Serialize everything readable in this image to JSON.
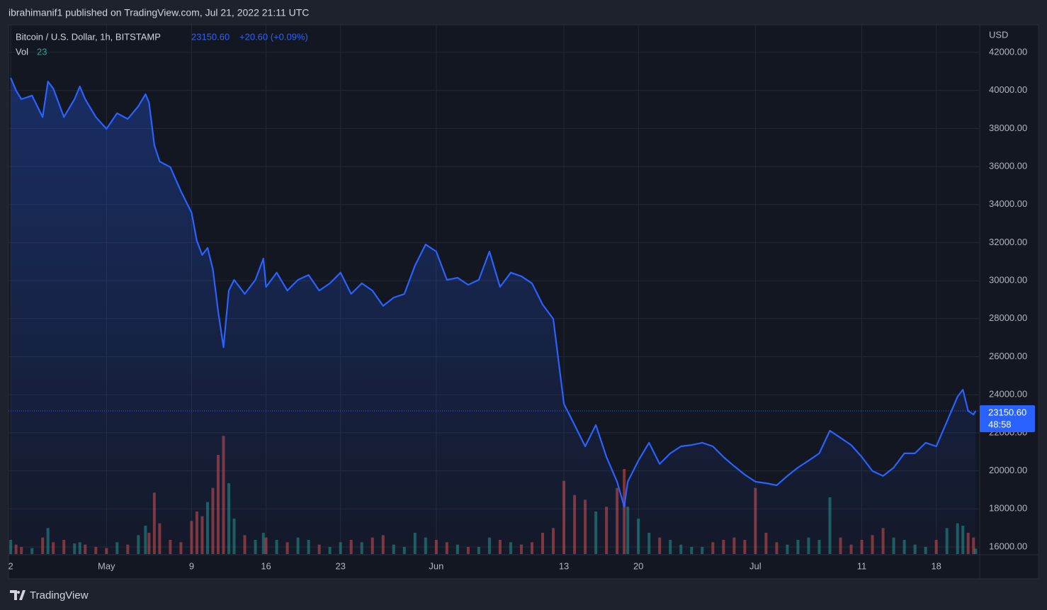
{
  "header": "ibrahimanif1 published on TradingView.com, Jul 21, 2022 21:11 UTC",
  "footer": "TradingView",
  "chart_data": {
    "type": "line",
    "title": "Bitcoin / U.S. Dollar, 1h, BITSTAMP",
    "last_price_label": "23150.60",
    "change_label": "+20.60 (+0.09%)",
    "countdown": "48:58",
    "y_axis_label": "USD",
    "grid": true,
    "x": [
      "2022-04-22T00:00",
      "2022-04-22T12:00",
      "2022-04-23T00:00",
      "2022-04-24T00:00",
      "2022-04-25T00:00",
      "2022-04-25T12:00",
      "2022-04-26T00:00",
      "2022-04-27T00:00",
      "2022-04-28T00:00",
      "2022-04-28T12:00",
      "2022-04-29T00:00",
      "2022-04-30T00:00",
      "2022-05-01T00:00",
      "2022-05-02T00:00",
      "2022-05-03T00:00",
      "2022-05-04T00:00",
      "2022-05-04T16:00",
      "2022-05-05T00:00",
      "2022-05-05T12:00",
      "2022-05-06T00:00",
      "2022-05-07T00:00",
      "2022-05-08T00:00",
      "2022-05-09T00:00",
      "2022-05-09T12:00",
      "2022-05-10T00:00",
      "2022-05-10T12:00",
      "2022-05-11T00:00",
      "2022-05-11T12:00",
      "2022-05-12T00:00",
      "2022-05-12T12:00",
      "2022-05-13T00:00",
      "2022-05-14T00:00",
      "2022-05-15T00:00",
      "2022-05-15T18:00",
      "2022-05-16T00:00",
      "2022-05-17T00:00",
      "2022-05-18T00:00",
      "2022-05-19T00:00",
      "2022-05-20T00:00",
      "2022-05-21T00:00",
      "2022-05-22T00:00",
      "2022-05-23T00:00",
      "2022-05-24T00:00",
      "2022-05-25T00:00",
      "2022-05-26T00:00",
      "2022-05-27T00:00",
      "2022-05-28T00:00",
      "2022-05-29T00:00",
      "2022-05-30T00:00",
      "2022-05-31T00:00",
      "2022-06-01T00:00",
      "2022-06-02T00:00",
      "2022-06-03T00:00",
      "2022-06-04T00:00",
      "2022-06-05T00:00",
      "2022-06-06T00:00",
      "2022-06-07T00:00",
      "2022-06-08T00:00",
      "2022-06-09T00:00",
      "2022-06-10T00:00",
      "2022-06-11T00:00",
      "2022-06-12T00:00",
      "2022-06-13T00:00",
      "2022-06-14T00:00",
      "2022-06-15T00:00",
      "2022-06-16T00:00",
      "2022-06-17T00:00",
      "2022-06-18T00:00",
      "2022-06-18T16:00",
      "2022-06-19T00:00",
      "2022-06-20T00:00",
      "2022-06-21T00:00",
      "2022-06-22T00:00",
      "2022-06-23T00:00",
      "2022-06-24T00:00",
      "2022-06-25T00:00",
      "2022-06-26T00:00",
      "2022-06-27T00:00",
      "2022-06-28T00:00",
      "2022-06-29T00:00",
      "2022-06-30T00:00",
      "2022-07-01T00:00",
      "2022-07-02T00:00",
      "2022-07-03T00:00",
      "2022-07-04T00:00",
      "2022-07-05T00:00",
      "2022-07-06T00:00",
      "2022-07-07T00:00",
      "2022-07-08T00:00",
      "2022-07-09T00:00",
      "2022-07-10T00:00",
      "2022-07-11T00:00",
      "2022-07-12T00:00",
      "2022-07-13T00:00",
      "2022-07-14T00:00",
      "2022-07-15T00:00",
      "2022-07-16T00:00",
      "2022-07-17T00:00",
      "2022-07-18T00:00",
      "2022-07-19T00:00",
      "2022-07-20T00:00",
      "2022-07-20T12:00",
      "2022-07-21T00:00",
      "2022-07-21T12:00",
      "2022-07-21T17:00"
    ],
    "series": [
      {
        "name": "Bitcoin / U.S. Dollar",
        "color": "#2962ff",
        "values": [
          40660,
          40000,
          39540,
          39730,
          38600,
          40470,
          40100,
          38600,
          39540,
          40210,
          39540,
          38600,
          37980,
          38800,
          38500,
          39170,
          39800,
          39360,
          37120,
          36260,
          35970,
          34700,
          33580,
          32090,
          31350,
          31720,
          30600,
          28370,
          26500,
          29480,
          30040,
          29300,
          30040,
          31160,
          29670,
          30420,
          29480,
          30040,
          30300,
          29480,
          29860,
          30420,
          29300,
          29860,
          29480,
          28670,
          29110,
          29300,
          30790,
          31900,
          31530,
          30040,
          30150,
          29780,
          30040,
          31530,
          29670,
          30420,
          30230,
          29860,
          28740,
          27990,
          23520,
          22410,
          21290,
          22410,
          20730,
          19430,
          18120,
          19430,
          20540,
          21480,
          20360,
          20920,
          21290,
          21360,
          21480,
          21290,
          20730,
          20250,
          19800,
          19430,
          19350,
          19240,
          19730,
          20170,
          20540,
          20920,
          22110,
          21740,
          21360,
          20730,
          19990,
          19730,
          20170,
          20920,
          20920,
          21480,
          21290,
          22590,
          23900,
          24270,
          23150,
          22960,
          23150.6
        ]
      }
    ],
    "volume": {
      "name": "Vol",
      "up_color": "rgba(38,166,154,0.5)",
      "down_color": "rgba(239,83,80,0.5)",
      "ylim": [
        0,
        600
      ],
      "values": [
        60,
        40,
        30,
        25,
        70,
        110,
        50,
        60,
        45,
        50,
        40,
        30,
        25,
        50,
        40,
        80,
        120,
        90,
        260,
        130,
        60,
        50,
        140,
        180,
        160,
        220,
        280,
        420,
        500,
        300,
        150,
        80,
        60,
        90,
        70,
        60,
        50,
        70,
        60,
        40,
        30,
        50,
        60,
        50,
        70,
        80,
        40,
        30,
        90,
        70,
        60,
        50,
        40,
        30,
        30,
        70,
        60,
        50,
        40,
        50,
        90,
        110,
        310,
        250,
        230,
        180,
        200,
        280,
        360,
        200,
        150,
        90,
        70,
        60,
        40,
        30,
        30,
        50,
        60,
        70,
        60,
        280,
        90,
        50,
        40,
        60,
        70,
        60,
        240,
        70,
        40,
        60,
        80,
        110,
        70,
        60,
        40,
        30,
        60,
        110,
        130,
        120,
        90,
        70,
        23
      ]
    },
    "xlim": [
      "2022-04-21T19:00",
      "2022-07-22T02:00"
    ],
    "xticks": [
      {
        "value": "2022-04-22T00:00",
        "label": "2"
      },
      {
        "value": "2022-05-01T00:00",
        "label": "May"
      },
      {
        "value": "2022-05-09T00:00",
        "label": "9"
      },
      {
        "value": "2022-05-16T00:00",
        "label": "16"
      },
      {
        "value": "2022-05-23T00:00",
        "label": "23"
      },
      {
        "value": "2022-06-01T00:00",
        "label": "Jun"
      },
      {
        "value": "2022-06-13T00:00",
        "label": "13"
      },
      {
        "value": "2022-06-20T00:00",
        "label": "20"
      },
      {
        "value": "2022-07-01T00:00",
        "label": "Jul"
      },
      {
        "value": "2022-07-11T00:00",
        "label": "11"
      },
      {
        "value": "2022-07-18T00:00",
        "label": "18"
      }
    ],
    "ylim": [
      15590,
      43450
    ],
    "yticks": [
      {
        "value": 16000,
        "label": "16000.00"
      },
      {
        "value": 18000,
        "label": "18000.00"
      },
      {
        "value": 20000,
        "label": "20000.00"
      },
      {
        "value": 22000,
        "label": "22000.00"
      },
      {
        "value": 24000,
        "label": "24000.00"
      },
      {
        "value": 26000,
        "label": "26000.00"
      },
      {
        "value": 28000,
        "label": "28000.00"
      },
      {
        "value": 30000,
        "label": "30000.00"
      },
      {
        "value": 32000,
        "label": "32000.00"
      },
      {
        "value": 34000,
        "label": "34000.00"
      },
      {
        "value": 36000,
        "label": "36000.00"
      },
      {
        "value": 38000,
        "label": "38000.00"
      },
      {
        "value": 40000,
        "label": "40000.00"
      },
      {
        "value": 42000,
        "label": "42000.00"
      }
    ]
  }
}
